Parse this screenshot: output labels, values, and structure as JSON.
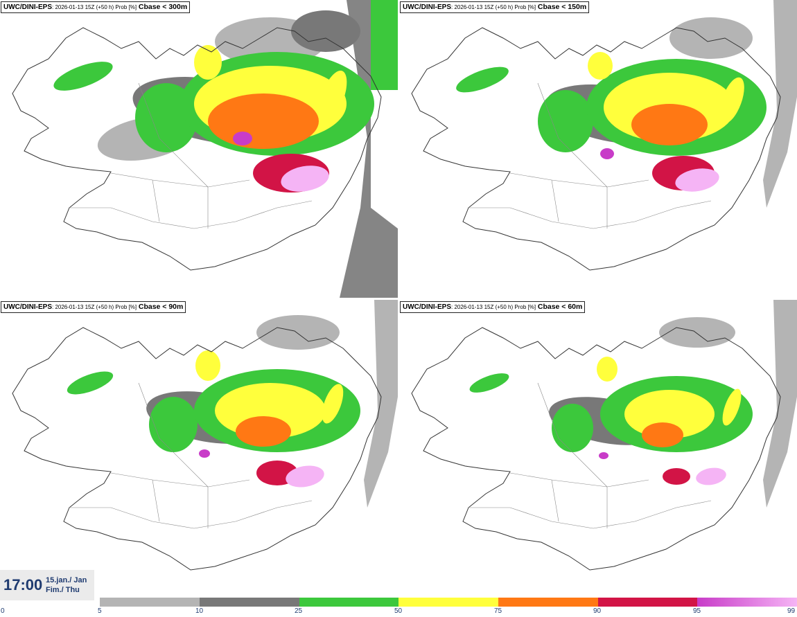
{
  "panels": [
    {
      "model": "UWC/DINI-EPS",
      "run": ": 2026-01-13 15Z (+50 h) Prob [%]",
      "field": "Cbase < 300m",
      "level": 4
    },
    {
      "model": "UWC/DINI-EPS",
      "run": ": 2026-01-13 15Z (+50 h) Prob [%]",
      "field": "Cbase < 150m",
      "level": 3
    },
    {
      "model": "UWC/DINI-EPS",
      "run": ": 2026-01-13 15Z (+50 h) Prob [%]",
      "field": "Cbase < 90m",
      "level": 2
    },
    {
      "model": "UWC/DINI-EPS",
      "run": ": 2026-01-13 15Z (+50 h) Prob [%]",
      "field": "Cbase < 60m",
      "level": 1
    }
  ],
  "valid_time": {
    "hour": "17:00",
    "date_line1": "15.jan./ Jan",
    "date_line2": "Fim./ Thu"
  },
  "colorbar": {
    "ticks": [
      "0",
      "5",
      "10",
      "25",
      "50",
      "75",
      "90",
      "95",
      "99"
    ],
    "colors": [
      "#ffffff",
      "#b4b4b4",
      "#787878",
      "#3cc83c",
      "#ffff3c",
      "#ff7814",
      "#d21446",
      "#c83cc8",
      "#f5b4f5"
    ]
  }
}
